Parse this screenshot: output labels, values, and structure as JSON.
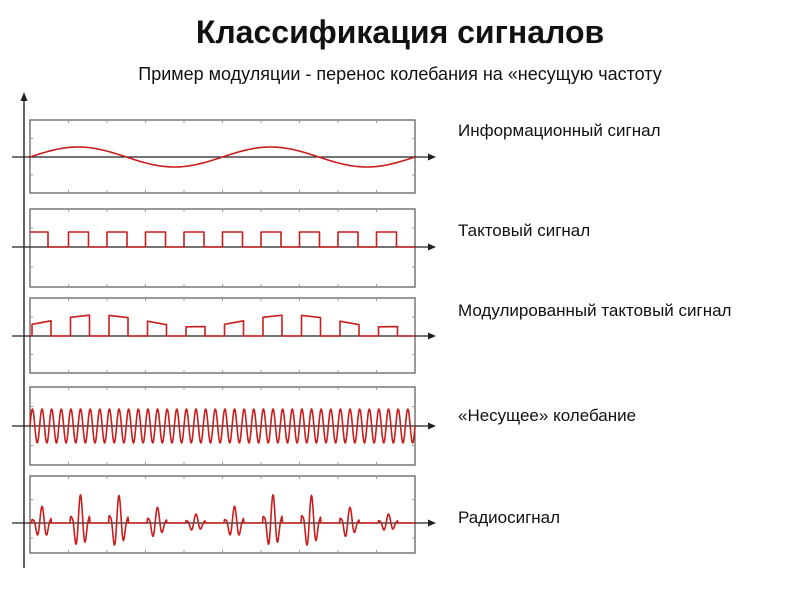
{
  "header": {
    "title": "Классификация сигналов",
    "subtitle": "Пример модуляции - перенос колебания на «несущую частоту"
  },
  "panels": [
    {
      "label": "Информационный сигнал",
      "kind": "sine"
    },
    {
      "label": "Тактовый сигнал",
      "kind": "clock"
    },
    {
      "label": "Модулированный тактовый сигнал",
      "kind": "modulated-clock"
    },
    {
      "label": "«Несущее» колебание",
      "kind": "carrier"
    },
    {
      "label": "Радиосигнал",
      "kind": "radio"
    }
  ],
  "colors": {
    "signal": "#c81e1e",
    "axis": "#222222",
    "grid": "#9a9a9a",
    "frame": "#555555"
  }
}
